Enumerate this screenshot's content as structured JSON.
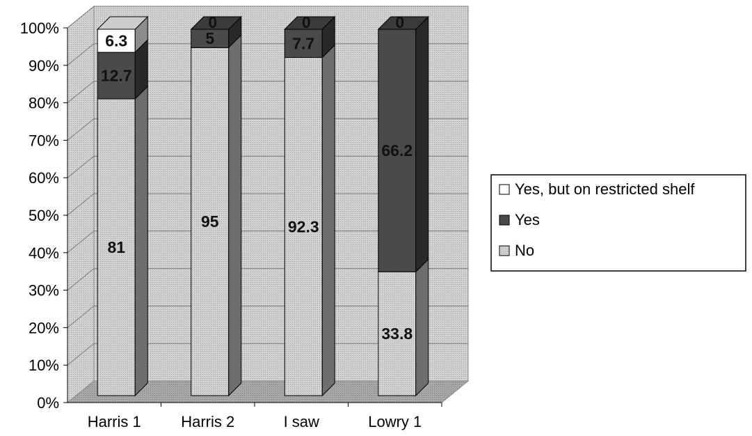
{
  "chart_data": {
    "type": "bar",
    "stacked": true,
    "percent": true,
    "three_d": true,
    "categories": [
      "Harris 1",
      "Harris 2",
      "I saw",
      "Lowry 1"
    ],
    "series": [
      {
        "name": "No",
        "values": [
          81,
          95,
          92.3,
          33.8
        ],
        "labels": [
          "81",
          "95",
          "92.3",
          "33.8"
        ],
        "color": "#c8c8c8"
      },
      {
        "name": "Yes",
        "values": [
          12.7,
          5,
          7.7,
          66.2
        ],
        "labels": [
          "12.7",
          "5",
          "7.7",
          "66.2"
        ],
        "color": "#4a4a4a"
      },
      {
        "name": "Yes, but on restricted shelf",
        "values": [
          6.3,
          0,
          0,
          0
        ],
        "labels": [
          "6.3",
          "0",
          "0",
          "0"
        ],
        "color": "#ffffff"
      }
    ],
    "y_ticks": [
      "0%",
      "10%",
      "20%",
      "30%",
      "40%",
      "50%",
      "60%",
      "70%",
      "80%",
      "90%",
      "100%"
    ],
    "ylim": [
      0,
      100
    ],
    "legend_position": "right",
    "grid": true,
    "title": "",
    "xlabel": "",
    "ylabel": ""
  }
}
